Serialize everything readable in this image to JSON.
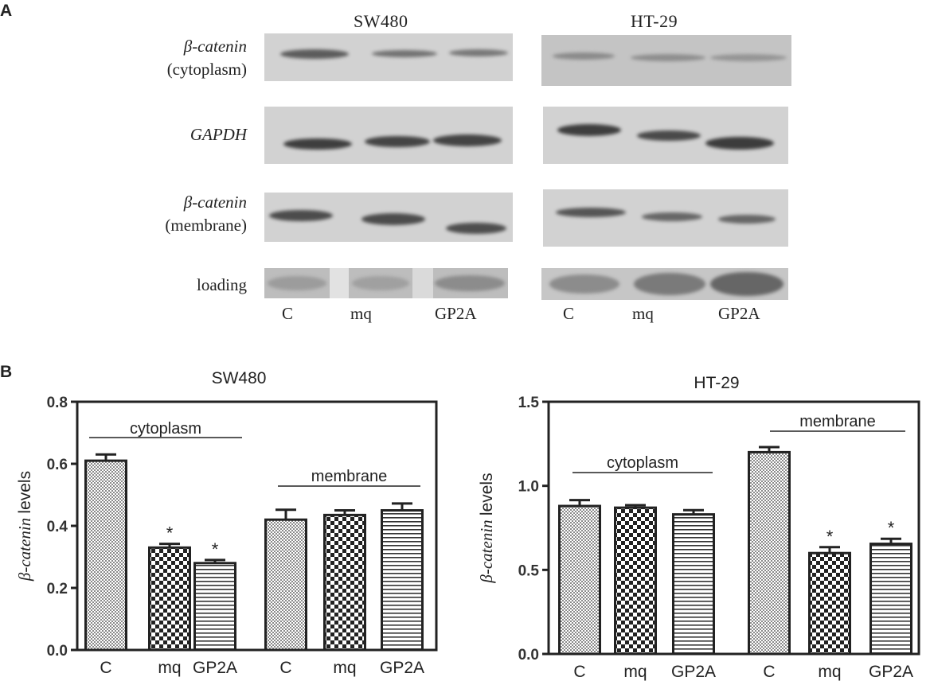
{
  "panel_a": {
    "letter": "A",
    "blot_titles": {
      "left": "SW480",
      "right": "HT-29"
    },
    "rows": {
      "cyto_gene": "β-catenin",
      "cyto_loc": "(cytoplasm)",
      "gapdh": "GAPDH",
      "mem_gene": "β-catenin",
      "mem_loc": "(membrane)",
      "loading": "loading"
    },
    "lane_labels": {
      "left": [
        "C",
        "mq",
        "GP2A"
      ],
      "right": [
        "C",
        "mq",
        "GP2A"
      ]
    }
  },
  "panel_b": {
    "letter": "B"
  },
  "chart_data": [
    {
      "type": "bar",
      "title": "SW480",
      "ylabel": "β-catenin levels",
      "xlabel": "",
      "ylim": [
        0,
        0.8
      ],
      "yticks": [
        "0.0",
        "0.2",
        "0.4",
        "0.6",
        "0.8"
      ],
      "categories": [
        "C",
        "mq",
        "GP2A",
        "C",
        "mq",
        "GP2A"
      ],
      "values": [
        0.61,
        0.33,
        0.28,
        0.42,
        0.435,
        0.45
      ],
      "errors": [
        0.02,
        0.012,
        0.01,
        0.032,
        0.015,
        0.022
      ],
      "significance": [
        "",
        "*",
        "*",
        "",
        "",
        ""
      ],
      "groups": [
        {
          "label": "cytoplasm",
          "from": 0,
          "to": 2
        },
        {
          "label": "membrane",
          "from": 3,
          "to": 5
        }
      ],
      "patterns": [
        "fine",
        "check",
        "hstripe",
        "fine",
        "check",
        "hstripe"
      ]
    },
    {
      "type": "bar",
      "title": "HT-29",
      "ylabel": "β-catenin levels",
      "xlabel": "",
      "ylim": [
        0,
        1.5
      ],
      "yticks": [
        "0.0",
        "0.5",
        "1.0",
        "1.5"
      ],
      "categories": [
        "C",
        "mq",
        "GP2A",
        "C",
        "mq",
        "GP2A"
      ],
      "values": [
        0.88,
        0.87,
        0.83,
        1.2,
        0.6,
        0.655
      ],
      "errors": [
        0.035,
        0.015,
        0.025,
        0.03,
        0.035,
        0.03
      ],
      "significance": [
        "",
        "",
        "",
        "",
        "*",
        "*"
      ],
      "groups": [
        {
          "label": "cytoplasm",
          "from": 0,
          "to": 2
        },
        {
          "label": "membrane",
          "from": 3,
          "to": 5
        }
      ],
      "patterns": [
        "fine",
        "check",
        "hstripe",
        "fine",
        "check",
        "hstripe"
      ]
    }
  ]
}
